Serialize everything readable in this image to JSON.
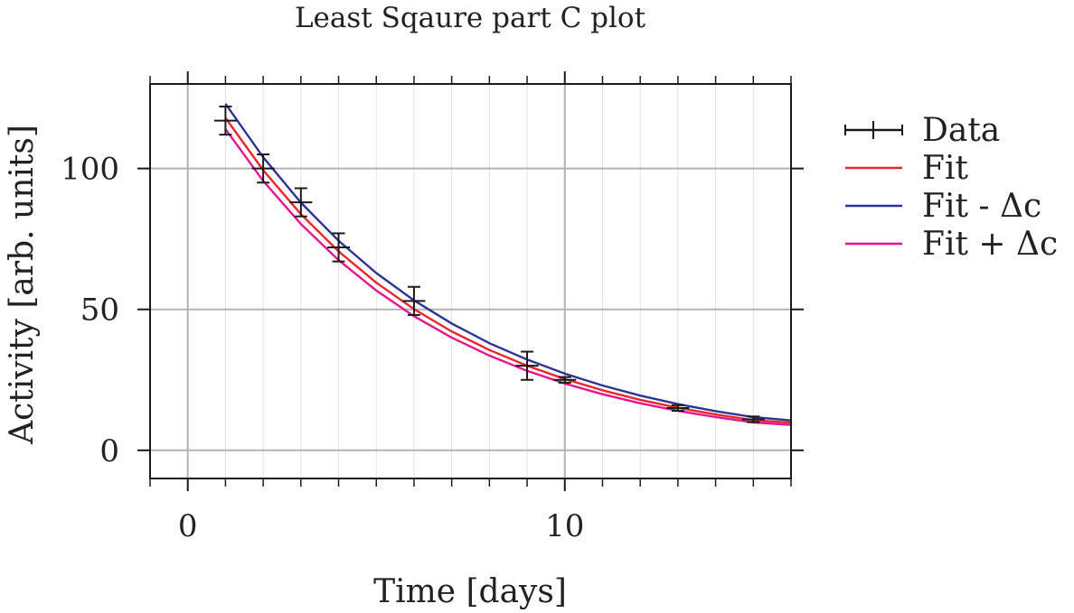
{
  "chart_data": {
    "type": "scatter",
    "title": "Least Sqaure part C plot",
    "xlabel": "Time [days]",
    "ylabel": "Activity [arb. units]",
    "xlim": [
      -1,
      16
    ],
    "ylim": [
      -10,
      130
    ],
    "x_major_ticks": [
      0,
      10
    ],
    "x_minor_step": 1,
    "y_major_ticks": [
      0,
      50,
      100
    ],
    "grid": true,
    "legend_position": "outside-right",
    "series": [
      {
        "name": "Data",
        "kind": "errorbar",
        "color": "#1a1a1a",
        "x": [
          1,
          2,
          3,
          4,
          6,
          9,
          10,
          13,
          15
        ],
        "y": [
          117,
          100,
          88,
          72,
          53,
          30,
          25,
          15,
          11
        ],
        "y_err": [
          5,
          5,
          5,
          5,
          5,
          5,
          1,
          1,
          1
        ],
        "x_err": [
          0.3,
          0.3,
          0.3,
          0.3,
          0.3,
          0.3,
          0.3,
          0.3,
          0.3
        ]
      },
      {
        "name": "Fit",
        "kind": "line",
        "color": "#e8262b",
        "x": [
          1,
          2,
          3,
          4,
          5,
          6,
          7,
          8,
          9,
          10,
          11,
          12,
          13,
          14,
          15,
          16
        ],
        "y": [
          118,
          99.4,
          83.8,
          70.6,
          59.5,
          50.1,
          42.2,
          35.6,
          30.0,
          25.3,
          21.3,
          17.9,
          15.1,
          12.7,
          10.7,
          9.8
        ]
      },
      {
        "name": "Fit - Δc",
        "kind": "line",
        "color": "#2b3594",
        "x": [
          1,
          2,
          3,
          4,
          5,
          6,
          7,
          8,
          9,
          10,
          11,
          12,
          13,
          14,
          15,
          16
        ],
        "y": [
          123,
          104.0,
          87.9,
          74.4,
          62.9,
          53.2,
          45.0,
          38.0,
          32.2,
          27.2,
          23.0,
          19.4,
          16.4,
          13.9,
          11.8,
          10.6
        ]
      },
      {
        "name": "Fit + Δc",
        "kind": "line",
        "color": "#e5158e",
        "x": [
          1,
          2,
          3,
          4,
          5,
          6,
          7,
          8,
          9,
          10,
          11,
          12,
          13,
          14,
          15,
          16
        ],
        "y": [
          114,
          95.6,
          80.3,
          67.5,
          56.7,
          47.6,
          40.0,
          33.6,
          28.2,
          23.7,
          19.9,
          16.7,
          14.0,
          11.8,
          9.9,
          9.0
        ]
      }
    ]
  }
}
